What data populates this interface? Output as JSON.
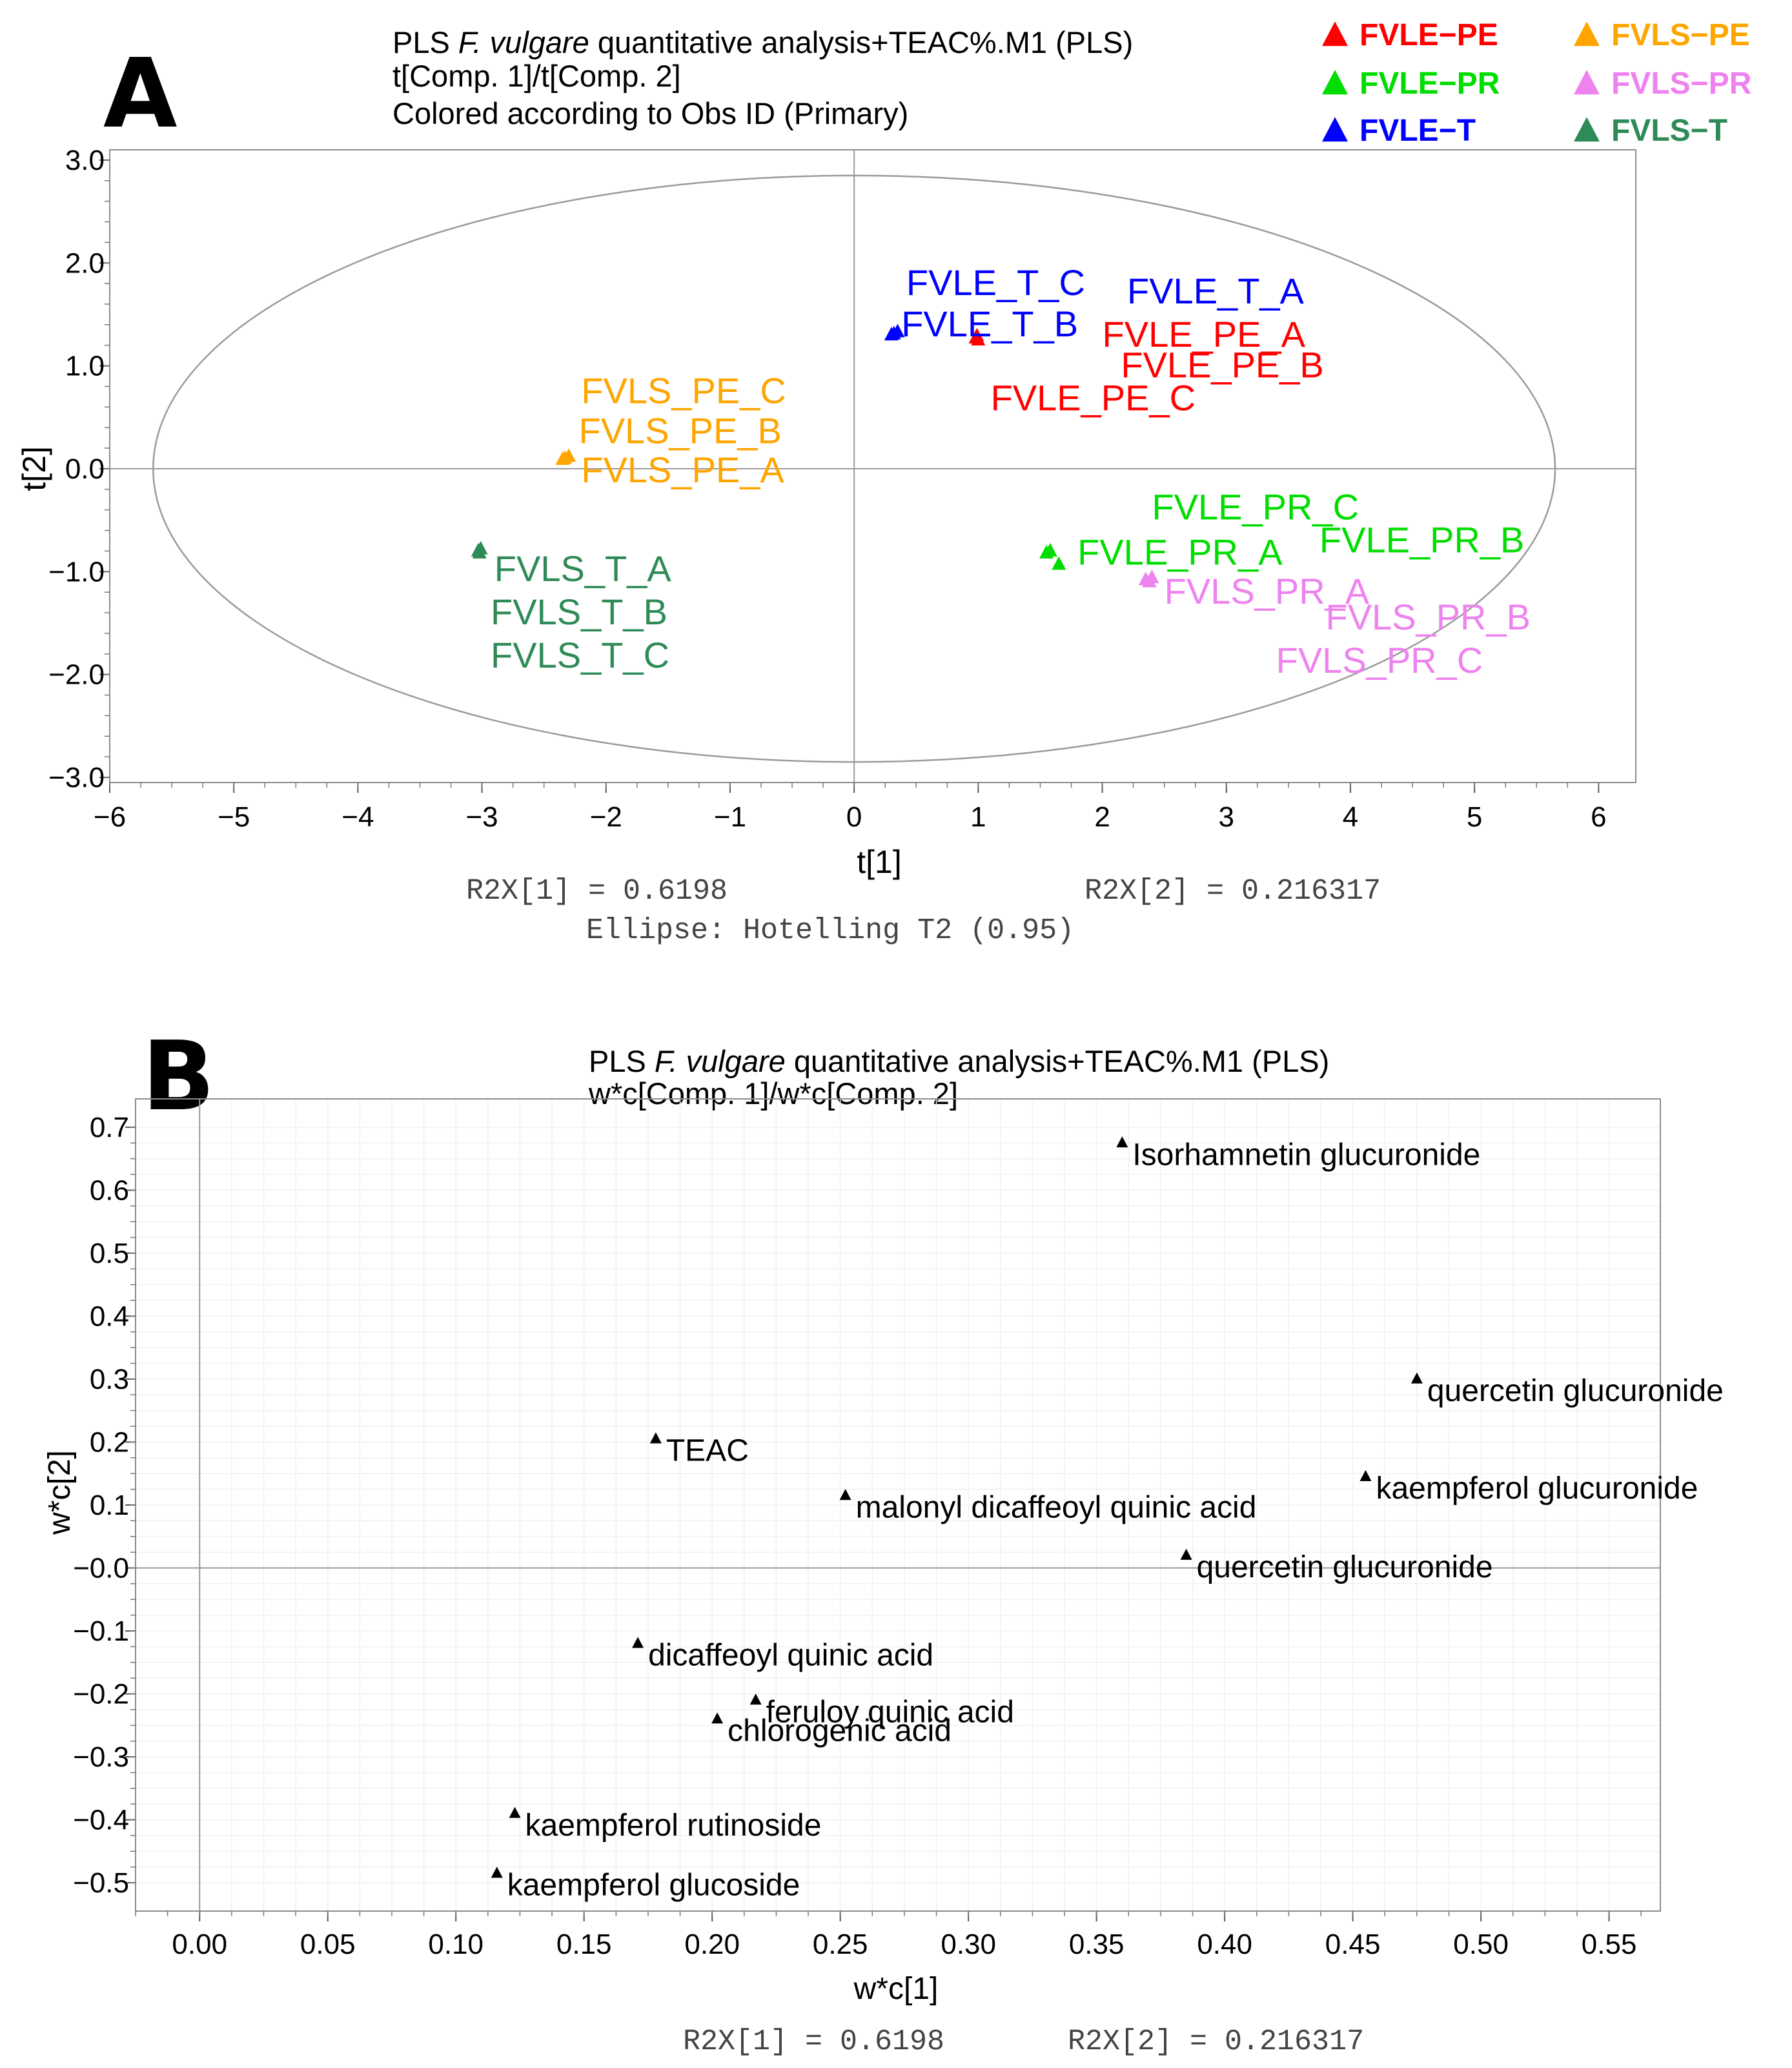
{
  "chart_data": [
    {
      "panel": "A",
      "type": "scatter",
      "title": [
        "PLS F. vulgare quantitative analysis+TEAC%.M1 (PLS)",
        "t[Comp. 1]/t[Comp. 2]",
        "Colored according to Obs ID (Primary)"
      ],
      "title_italic": "F. vulgare",
      "xlabel": "t[1]",
      "ylabel": "t[2]",
      "xlim": [
        -6.0,
        6.3
      ],
      "ylim": [
        -3.05,
        3.1
      ],
      "xticks": [
        -6,
        -5,
        -4,
        -3,
        -2,
        -1,
        0,
        1,
        2,
        3,
        4,
        5,
        6
      ],
      "xtick_labels": [
        "−6",
        "−5",
        "−4",
        "−3",
        "−2",
        "−1",
        "0",
        "1",
        "2",
        "3",
        "4",
        "5",
        "6"
      ],
      "yticks": [
        3,
        2,
        1,
        0,
        -1,
        -2,
        -3
      ],
      "ytick_labels": [
        "3.0",
        "2.0",
        "1.0",
        "0.0",
        "−1.0",
        "−2.0",
        "−3.0"
      ],
      "footer": [
        "R2X[1] = 0.6198",
        "R2X[2] = 0.216317",
        "Ellipse: Hotelling T2 (0.95)"
      ],
      "ellipse": {
        "a": 5.65,
        "b": 2.85
      },
      "legend": [
        {
          "label": "FVLE−PE",
          "color": "#ff0000"
        },
        {
          "label": "FVLS−PE",
          "color": "#ffa500"
        },
        {
          "label": "FVLE−PR",
          "color": "#00dd00"
        },
        {
          "label": "FVLS−PR",
          "color": "#ee82ee"
        },
        {
          "label": "FVLE−T",
          "color": "#0000ff"
        },
        {
          "label": "FVLS−T",
          "color": "#2e8b57"
        }
      ],
      "series": [
        {
          "name": "FVLE-PE",
          "color": "#ff0000",
          "points": [
            [
              0.98,
              1.27
            ],
            [
              1.0,
              1.25
            ],
            [
              0.99,
              1.29
            ]
          ],
          "labels": [
            {
              "text": "FVLE_PE_A",
              "x": 2.0,
              "y": 1.3
            },
            {
              "text": "FVLE_PE_B",
              "x": 2.15,
              "y": 1.0
            },
            {
              "text": "FVLE_PE_C",
              "x": 1.1,
              "y": 0.68
            }
          ]
        },
        {
          "name": "FVLS-PE",
          "color": "#ffa500",
          "points": [
            [
              -2.33,
              0.1
            ],
            [
              -2.3,
              0.12
            ],
            [
              -2.35,
              0.09
            ]
          ],
          "labels": [
            {
              "text": "FVLS_PE_C",
              "x": -2.2,
              "y": 0.75
            },
            {
              "text": "FVLS_PE_B",
              "x": -2.22,
              "y": 0.36
            },
            {
              "text": "FVLS_PE_A",
              "x": -2.2,
              "y": -0.02
            }
          ]
        },
        {
          "name": "FVLE-PR",
          "color": "#00dd00",
          "points": [
            [
              1.55,
              -0.82
            ],
            [
              1.65,
              -0.93
            ],
            [
              1.58,
              -0.8
            ]
          ],
          "labels": [
            {
              "text": "FVLE_PR_A",
              "x": 1.8,
              "y": -0.82
            },
            {
              "text": "FVLE_PR_B",
              "x": 3.75,
              "y": -0.7
            },
            {
              "text": "FVLE_PR_C",
              "x": 2.4,
              "y": -0.38
            }
          ]
        },
        {
          "name": "FVLS-PR",
          "color": "#ee82ee",
          "points": [
            [
              2.35,
              -1.08
            ],
            [
              2.4,
              -1.06
            ],
            [
              2.38,
              -1.1
            ]
          ],
          "labels": [
            {
              "text": "FVLS_PR_A",
              "x": 2.5,
              "y": -1.2
            },
            {
              "text": "FVLS_PR_B",
              "x": 3.8,
              "y": -1.45
            },
            {
              "text": "FVLS_PR_C",
              "x": 3.4,
              "y": -1.87
            }
          ]
        },
        {
          "name": "FVLE-T",
          "color": "#0000ff",
          "points": [
            [
              0.3,
              1.3
            ],
            [
              0.35,
              1.33
            ],
            [
              0.32,
              1.31
            ]
          ],
          "labels": [
            {
              "text": "FVLE_T_C",
              "x": 0.42,
              "y": 1.8
            },
            {
              "text": "FVLE_T_B",
              "x": 0.38,
              "y": 1.4
            },
            {
              "text": "FVLE_T_A",
              "x": 2.2,
              "y": 1.72
            }
          ]
        },
        {
          "name": "FVLS-T",
          "color": "#2e8b57",
          "points": [
            [
              -3.03,
              -0.8
            ],
            [
              -3.01,
              -0.78
            ],
            [
              -3.02,
              -0.82
            ]
          ],
          "labels": [
            {
              "text": "FVLS_T_A",
              "x": -2.9,
              "y": -0.98
            },
            {
              "text": "FVLS_T_B",
              "x": -2.93,
              "y": -1.4
            },
            {
              "text": "FVLS_T_C",
              "x": -2.93,
              "y": -1.82
            }
          ]
        }
      ]
    },
    {
      "panel": "B",
      "type": "scatter",
      "title": [
        "PLS F. vulgare quantitative analysis+TEAC%.M1 (PLS)",
        "w*c[Comp. 1]/w*c[Comp. 2]"
      ],
      "title_italic": "F. vulgare",
      "xlabel": "w*c[1]",
      "ylabel": "w*c[2]",
      "xlim": [
        -0.025,
        0.57
      ],
      "ylim": [
        -0.545,
        0.745
      ],
      "xticks": [
        0.0,
        0.05,
        0.1,
        0.15,
        0.2,
        0.25,
        0.3,
        0.35,
        0.4,
        0.45,
        0.5,
        0.55
      ],
      "xtick_labels": [
        "0.00",
        "0.05",
        "0.10",
        "0.15",
        "0.20",
        "0.25",
        "0.30",
        "0.35",
        "0.40",
        "0.45",
        "0.50",
        "0.55"
      ],
      "yticks": [
        0.7,
        0.6,
        0.5,
        0.4,
        0.3,
        0.2,
        0.1,
        0.0,
        -0.1,
        -0.2,
        -0.3,
        -0.4,
        -0.5
      ],
      "ytick_labels": [
        "0.7",
        "0.6",
        "0.5",
        "0.4",
        "0.3",
        "0.2",
        "0.1",
        "−0.0",
        "−0.1",
        "−0.2",
        "−0.3",
        "−0.4",
        "−0.5"
      ],
      "footer": [
        "R2X[1] = 0.6198",
        "R2X[2] = 0.216317"
      ],
      "points": [
        {
          "x": 0.36,
          "y": 0.675,
          "label": "Isorhamnetin glucuronide"
        },
        {
          "x": 0.475,
          "y": 0.3,
          "label": "quercetin glucuronide"
        },
        {
          "x": 0.178,
          "y": 0.205,
          "label": "TEAC"
        },
        {
          "x": 0.252,
          "y": 0.115,
          "label": "malonyl dicaffeoyl quinic acid"
        },
        {
          "x": 0.455,
          "y": 0.145,
          "label": "kaempferol glucuronide"
        },
        {
          "x": 0.385,
          "y": 0.02,
          "label": "quercetin glucuronide"
        },
        {
          "x": 0.171,
          "y": -0.12,
          "label": "dicaffeoyl  quinic acid"
        },
        {
          "x": 0.217,
          "y": -0.21,
          "label": "feruloy quinic acid"
        },
        {
          "x": 0.202,
          "y": -0.24,
          "label": "chlorogenic acid"
        },
        {
          "x": 0.123,
          "y": -0.39,
          "label": "kaempferol rutinoside"
        },
        {
          "x": 0.116,
          "y": -0.485,
          "label": "kaempferol glucoside"
        }
      ]
    }
  ]
}
